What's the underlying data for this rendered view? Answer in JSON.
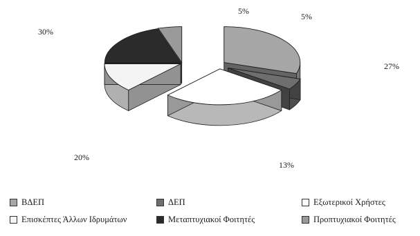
{
  "chart_data": {
    "type": "pie",
    "title": "",
    "legend_position": "bottom",
    "slices": [
      {
        "label": "ΒΔΕΠ",
        "value": 30,
        "value_label": "30%",
        "color": "#a6a6a6"
      },
      {
        "label": "ΔΕΠ",
        "value": 5,
        "value_label": "5%",
        "color": "#6e6e6e"
      },
      {
        "label": "Εξωτερικοί Χρήστες",
        "value": 27,
        "value_label": "27%",
        "color": "#ffffff"
      },
      {
        "label": "Επισκέπτες Άλλων Ιδρυμάτων",
        "value": 13,
        "value_label": "13%",
        "color": "#f4f4f4"
      },
      {
        "label": "Μεταπτυχιακοί Φοιτητές",
        "value": 20,
        "value_label": "20%",
        "color": "#2b2b2b"
      },
      {
        "label": "Προπτυχιακοί Φοιτητές",
        "value": 5,
        "value_label": "5%",
        "color": "#9a9a9a"
      }
    ]
  },
  "legend": {
    "items": [
      {
        "label": "ΒΔΕΠ",
        "color": "#a6a6a6"
      },
      {
        "label": "ΔΕΠ",
        "color": "#6e6e6e"
      },
      {
        "label": "Εξωτερικοί Χρήστες",
        "color": "#ffffff"
      },
      {
        "label": "Επισκέπτες Άλλων Ιδρυμάτων",
        "color": "#f4f4f4"
      },
      {
        "label": "Μεταπτυχιακοί Φοιτητές",
        "color": "#2b2b2b"
      },
      {
        "label": "Προπτυχιακοί Φοιτητές",
        "color": "#9a9a9a"
      }
    ]
  }
}
